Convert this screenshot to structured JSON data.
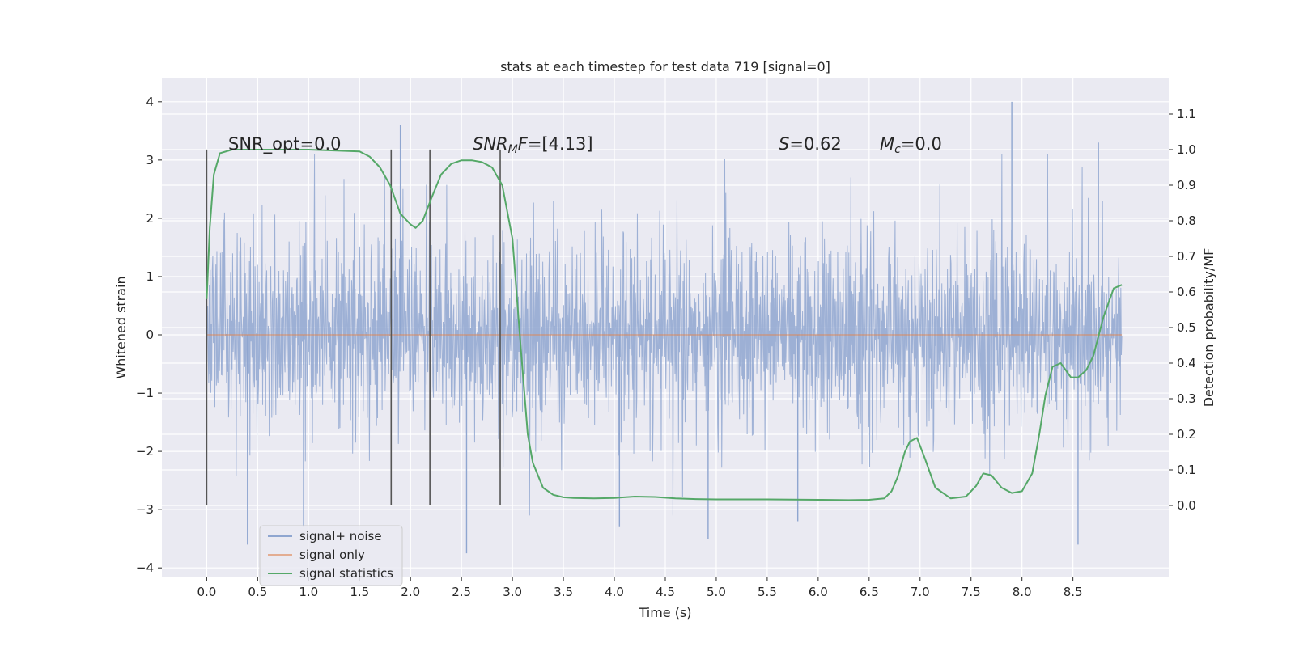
{
  "chart_data": {
    "type": "line",
    "title": "stats at each timestep for test data 719 [signal=0]",
    "xlabel": "Time (s)",
    "ylabel": "Whitened strain",
    "ylabel_right": "Detection probability/MF",
    "xlim": [
      -0.44,
      9.44
    ],
    "ylim": [
      -4.15,
      4.4
    ],
    "ylim_right": [
      -0.2,
      1.2
    ],
    "xticks": [
      "0.0",
      "0.5",
      "1.0",
      "1.5",
      "2.0",
      "2.5",
      "3.0",
      "3.5",
      "4.0",
      "4.5",
      "5.0",
      "5.5",
      "6.0",
      "6.5",
      "7.0",
      "7.5",
      "8.0",
      "8.5"
    ],
    "yticks": [
      "4",
      "3",
      "2",
      "1",
      "0",
      "−1",
      "−2",
      "−3",
      "−4"
    ],
    "yticks_right": [
      "1.1",
      "1.0",
      "0.9",
      "0.8",
      "0.7",
      "0.6",
      "0.5",
      "0.4",
      "0.3",
      "0.2",
      "0.1",
      "0.0"
    ],
    "annotations": {
      "snr_opt": "SNR_opt=0.0",
      "snr_mf_base": "SNR",
      "snr_mf_sub": "M",
      "snr_mf_rest": "F=[4.13]",
      "s_italic": "S",
      "s_rest": "=0.62",
      "mc_italic": "M",
      "mc_sub": "c",
      "mc_rest": "=0.0"
    },
    "vlines": [
      {
        "x": 0.0,
        "y0": -2.92,
        "y1": 3.18
      },
      {
        "x": 1.81,
        "y0": -2.92,
        "y1": 3.18
      },
      {
        "x": 2.19,
        "y0": -2.92,
        "y1": 3.18
      },
      {
        "x": 2.88,
        "y0": -2.92,
        "y1": 3.18
      }
    ],
    "series": [
      {
        "name": "signal+ noise",
        "color": "#8fa6d0",
        "duration": 8.98,
        "typical_amplitude": 1.35,
        "extreme_points": [
          [
            0.4,
            -3.6
          ],
          [
            0.95,
            -3.3
          ],
          [
            1.9,
            3.6
          ],
          [
            2.55,
            -3.75
          ],
          [
            4.05,
            -3.3
          ],
          [
            4.92,
            -3.5
          ],
          [
            5.8,
            -3.2
          ],
          [
            7.9,
            4.0
          ],
          [
            8.55,
            -3.6
          ],
          [
            8.75,
            3.3
          ]
        ]
      },
      {
        "name": "signal only",
        "color": "#dd8452",
        "x": [
          0,
          8.98
        ],
        "y": [
          0,
          0
        ]
      },
      {
        "name": "signal statistics",
        "color": "#55a868",
        "axis": "right",
        "x": [
          0.0,
          0.03,
          0.07,
          0.13,
          0.25,
          0.5,
          1.0,
          1.5,
          1.6,
          1.7,
          1.8,
          1.9,
          2.0,
          2.05,
          2.12,
          2.2,
          2.3,
          2.4,
          2.5,
          2.6,
          2.7,
          2.8,
          2.9,
          3.0,
          3.08,
          3.15,
          3.2,
          3.3,
          3.4,
          3.5,
          3.6,
          3.8,
          4.0,
          4.2,
          4.4,
          4.6,
          4.8,
          5.0,
          5.5,
          6.0,
          6.3,
          6.5,
          6.65,
          6.72,
          6.78,
          6.85,
          6.9,
          6.97,
          7.05,
          7.15,
          7.3,
          7.45,
          7.55,
          7.62,
          7.7,
          7.8,
          7.9,
          8.0,
          8.1,
          8.17,
          8.23,
          8.3,
          8.38,
          8.48,
          8.55,
          8.63,
          8.7,
          8.8,
          8.9,
          8.98
        ],
        "y": [
          0.58,
          0.78,
          0.93,
          0.99,
          1.0,
          1.0,
          1.0,
          0.995,
          0.98,
          0.95,
          0.9,
          0.82,
          0.79,
          0.78,
          0.8,
          0.86,
          0.93,
          0.96,
          0.97,
          0.97,
          0.965,
          0.95,
          0.9,
          0.75,
          0.45,
          0.2,
          0.12,
          0.05,
          0.03,
          0.023,
          0.021,
          0.02,
          0.021,
          0.025,
          0.024,
          0.02,
          0.018,
          0.017,
          0.017,
          0.016,
          0.015,
          0.016,
          0.02,
          0.04,
          0.08,
          0.15,
          0.18,
          0.19,
          0.13,
          0.05,
          0.02,
          0.025,
          0.055,
          0.09,
          0.085,
          0.05,
          0.035,
          0.04,
          0.09,
          0.2,
          0.31,
          0.39,
          0.4,
          0.36,
          0.36,
          0.38,
          0.42,
          0.53,
          0.61,
          0.62
        ]
      }
    ],
    "legend_location": "lower-left"
  }
}
